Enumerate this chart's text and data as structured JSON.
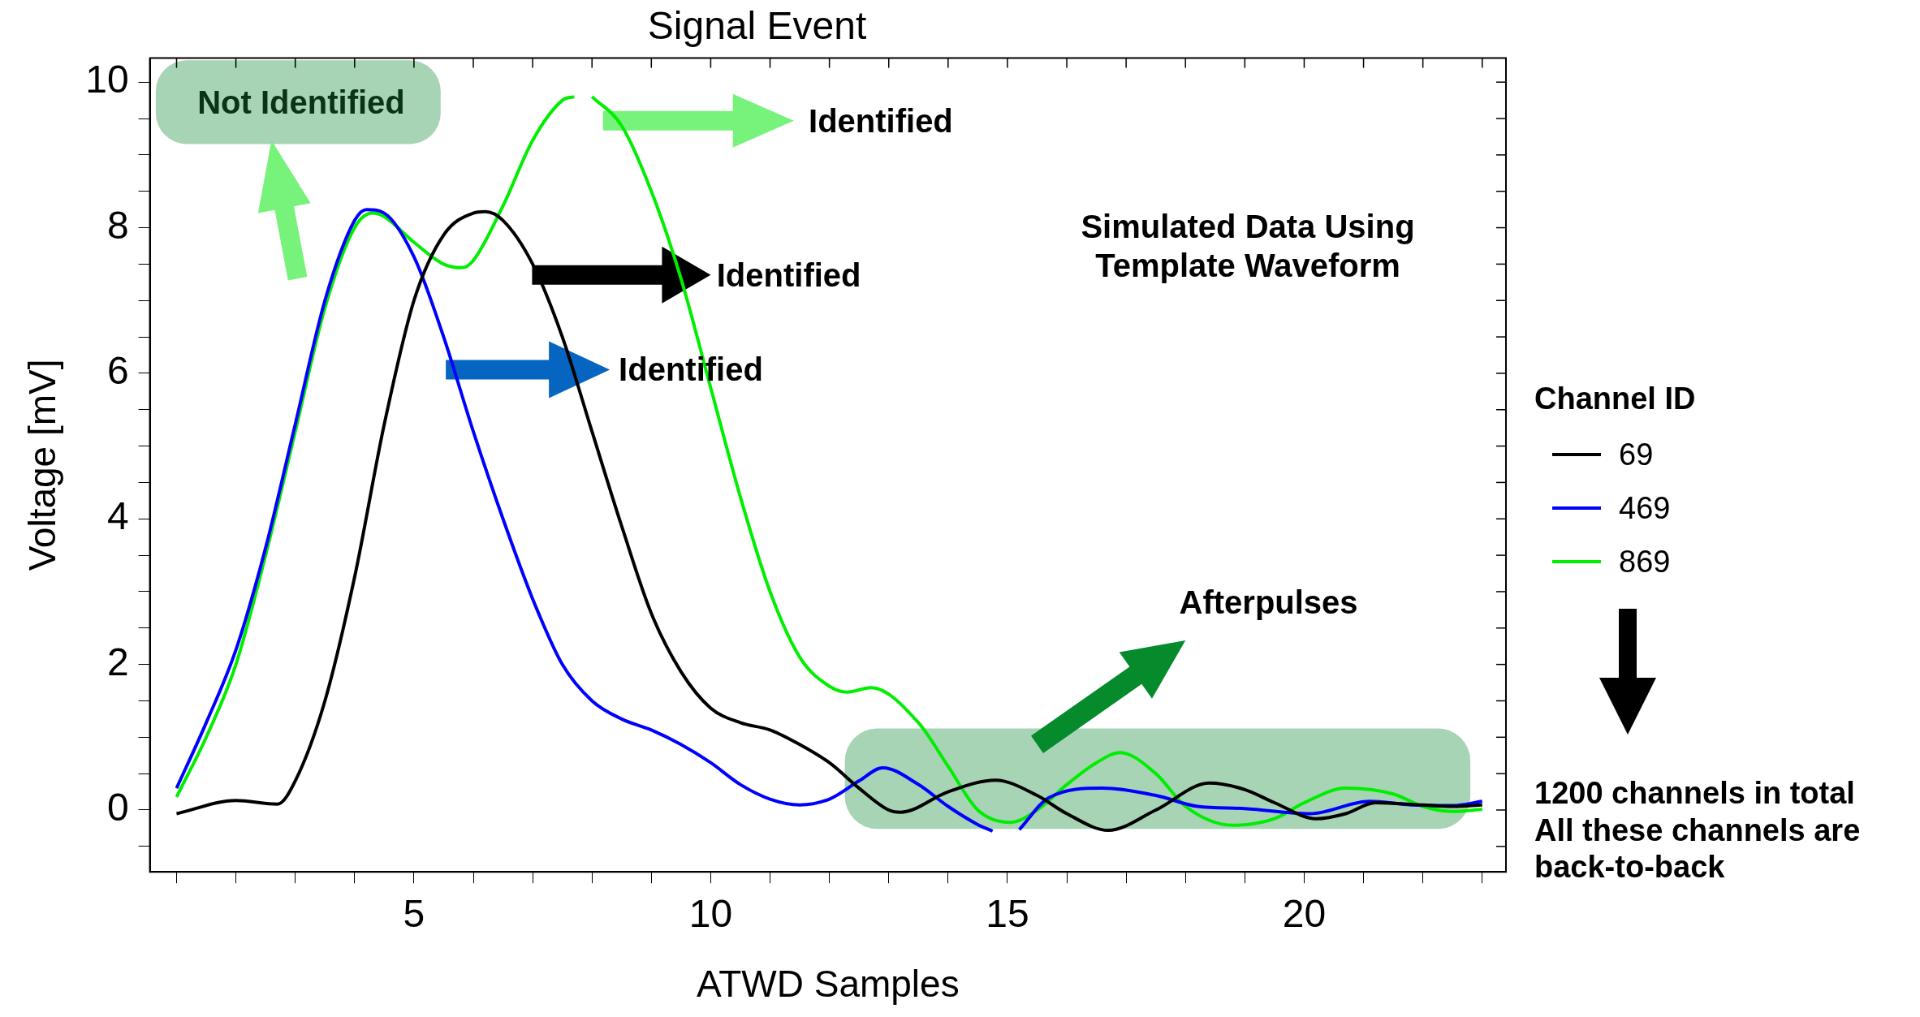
{
  "chart_data": {
    "type": "line",
    "title": "Signal Event",
    "xlabel": "ATWD Samples",
    "ylabel": "Voltage [mV]",
    "legend_title": "Channel ID",
    "legend": "right",
    "grid": false,
    "marker": "none",
    "line_style": "solid",
    "xlim": [
      0.55,
      23.4
    ],
    "xticks": [
      {
        "value": 1,
        "label": null
      },
      {
        "value": 2,
        "label": null
      },
      {
        "value": 3,
        "label": null
      },
      {
        "value": 4,
        "label": null
      },
      5,
      {
        "value": 6,
        "label": null
      },
      {
        "value": 7,
        "label": null
      },
      {
        "value": 8,
        "label": null
      },
      {
        "value": 9,
        "label": null
      },
      10,
      {
        "value": 11,
        "label": null
      },
      {
        "value": 12,
        "label": null
      },
      {
        "value": 13,
        "label": null
      },
      {
        "value": 14,
        "label": null
      },
      15,
      {
        "value": 16,
        "label": null
      },
      {
        "value": 17,
        "label": null
      },
      {
        "value": 18,
        "label": null
      },
      {
        "value": 19,
        "label": null
      },
      20,
      {
        "value": 21,
        "label": null
      },
      {
        "value": 22,
        "label": null
      },
      {
        "value": 23,
        "label": null
      }
    ],
    "ylim": [
      -0.85,
      10.33
    ],
    "yticks": [
      {
        "value": -0.5,
        "label": null
      },
      0,
      {
        "value": 0.5,
        "label": null
      },
      {
        "value": 1,
        "label": null
      },
      {
        "value": 1.5,
        "label": null
      },
      2,
      {
        "value": 2.5,
        "label": null
      },
      {
        "value": 3,
        "label": null
      },
      {
        "value": 3.5,
        "label": null
      },
      4,
      {
        "value": 4.5,
        "label": null
      },
      {
        "value": 5,
        "label": null
      },
      {
        "value": 5.5,
        "label": null
      },
      6,
      {
        "value": 6.5,
        "label": null
      },
      {
        "value": 7,
        "label": null
      },
      {
        "value": 7.5,
        "label": null
      },
      8,
      {
        "value": 8.5,
        "label": null
      },
      {
        "value": 9,
        "label": null
      },
      {
        "value": 9.5,
        "label": null
      },
      10
    ],
    "series": [
      {
        "name": "69",
        "color": "#000000",
        "x": [
          1,
          2,
          2.7,
          3,
          3.5,
          4,
          4.5,
          5,
          5.5,
          6,
          6.2,
          6.5,
          7,
          7.5,
          8,
          8.5,
          9,
          9.5,
          10,
          10.5,
          11,
          11.5,
          12,
          12.5,
          13,
          13.2,
          14,
          14.8,
          15.5,
          16,
          16.7,
          17.5,
          18.4,
          19,
          19.5,
          20.2,
          20.7,
          21.2,
          22,
          22.5,
          23
        ],
        "values": [
          -0.05,
          0.13,
          0.08,
          0.4,
          1.5,
          3.2,
          5.3,
          7,
          7.9,
          8.2,
          8.22,
          8.1,
          7.5,
          6.5,
          5.2,
          3.9,
          2.7,
          1.9,
          1.4,
          1.2,
          1.1,
          0.9,
          0.65,
          0.3,
          0,
          -0.03,
          0.25,
          0.41,
          0.2,
          -0.05,
          -0.28,
          0.0,
          0.37,
          0.28,
          0.1,
          -0.12,
          -0.05,
          0.1,
          0.07,
          0.05,
          0.07
        ]
      },
      {
        "name": "469",
        "color": "#0000ff",
        "x": [
          1,
          1.5,
          2,
          2.5,
          3,
          3.5,
          4,
          4.2,
          4.5,
          5,
          5.5,
          6,
          6.5,
          7,
          7.5,
          8,
          8.5,
          9,
          9.5,
          10,
          10.5,
          11,
          11.5,
          12,
          12.5,
          12.9,
          13.5,
          14,
          14.5,
          14.75,
          15,
          15.2,
          15.7,
          16.6,
          17.5,
          18.2,
          19,
          20.1,
          21.1,
          21.8,
          22.5,
          23
        ],
        "values": [
          0.3,
          1.2,
          2.2,
          3.6,
          5.3,
          7,
          8.1,
          8.25,
          8.2,
          7.6,
          6.5,
          5.2,
          4,
          2.9,
          2,
          1.5,
          1.25,
          1.1,
          0.9,
          0.65,
          0.35,
          0.15,
          0.07,
          0.15,
          0.4,
          0.58,
          0.35,
          0.05,
          -0.2,
          -0.29,
          null,
          -0.27,
          0.17,
          0.3,
          0.2,
          0.05,
          0.02,
          -0.05,
          0.12,
          0.07,
          0.06,
          0.12
        ]
      },
      {
        "name": "869",
        "color": "#00ee00",
        "x": [
          1,
          1.5,
          2,
          2.5,
          3,
          3.5,
          4,
          4.3,
          4.5,
          5,
          5.5,
          5.8,
          6,
          6.5,
          7,
          7.5,
          7.7,
          7.85,
          8,
          8.5,
          9,
          9.5,
          10,
          10.5,
          11,
          11.5,
          12,
          12.3,
          12.7,
          13.5,
          14,
          14.5,
          15.05,
          15.5,
          16,
          16.5,
          16.9,
          17.5,
          18,
          18.8,
          19.5,
          20,
          20.7,
          21.5,
          22,
          22.5,
          23
        ],
        "values": [
          0.18,
          1,
          2,
          3.5,
          5.2,
          6.9,
          8,
          8.2,
          8.15,
          7.8,
          7.5,
          7.45,
          7.55,
          8.3,
          9.2,
          9.75,
          9.8,
          null,
          9.8,
          9.4,
          8.5,
          7.3,
          5.8,
          4.3,
          3,
          2.1,
          1.7,
          1.62,
          1.68,
          1.2,
          0.6,
          0,
          -0.17,
          0,
          0.35,
          0.65,
          0.79,
          0.5,
          0.05,
          -0.21,
          -0.12,
          0.1,
          0.3,
          0.22,
          0.05,
          -0.02,
          0.01
        ]
      }
    ],
    "annotations": [
      "Not Identified",
      "Identified",
      "Identified",
      "Identified",
      "Simulated Data Using\nTemplate Waveform",
      "Afterpulses",
      "1200 channels in total\nAll these channels are\nback-to-back"
    ]
  }
}
